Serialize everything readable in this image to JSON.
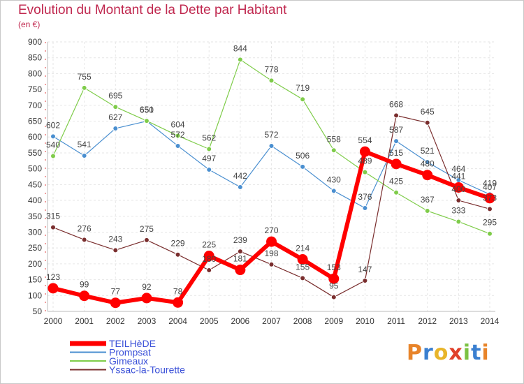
{
  "header": {
    "title": "Evolution du Montant de la Dette par Habitant",
    "subtitle": "(en €)"
  },
  "logo": {
    "text": "Proxiti",
    "colors": [
      "#e8842a",
      "#3a7fd0",
      "#e8b52a",
      "#e0402a",
      "#7cc243",
      "#3a7fd0",
      "#e8842a"
    ]
  },
  "chart_data": {
    "type": "line",
    "x": [
      "2000",
      "2001",
      "2002",
      "2003",
      "2004",
      "2005",
      "2006",
      "2007",
      "2008",
      "2009",
      "2010",
      "2011",
      "2012",
      "2013",
      "2014"
    ],
    "ylim": [
      50,
      900
    ],
    "yticks": [
      "50",
      "100",
      "150",
      "200",
      "250",
      "300",
      "350",
      "400",
      "450",
      "500",
      "550",
      "600",
      "650",
      "700",
      "750",
      "800",
      "850",
      "900"
    ],
    "grid": true,
    "legend_position": "bottom-left",
    "series": [
      {
        "name": "TEILHèDE",
        "color": "#ff0000",
        "width": 6,
        "values": [
          123,
          99,
          77,
          92,
          78,
          225,
          181,
          270,
          214,
          153,
          554,
          515,
          480,
          441,
          407
        ],
        "labels": [
          "123",
          "99",
          "77",
          "92",
          "78",
          "225",
          "181",
          "270",
          "214",
          "153",
          "554",
          "515",
          "480",
          "441",
          "407"
        ]
      },
      {
        "name": "Prompsat",
        "color": "#4a8fd0",
        "width": 1.2,
        "values": [
          602,
          541,
          627,
          650,
          572,
          497,
          442,
          572,
          506,
          430,
          376,
          587,
          521,
          464,
          419
        ],
        "labels": [
          "602",
          "541",
          "627",
          "650",
          "572",
          "497",
          "442",
          "572",
          "506",
          "430",
          "376",
          "587",
          "521",
          "464",
          "419"
        ]
      },
      {
        "name": "Gimeaux",
        "color": "#7fcc4a",
        "width": 1.2,
        "values": [
          540,
          755,
          695,
          651,
          604,
          562,
          844,
          778,
          719,
          558,
          489,
          425,
          367,
          333,
          295
        ],
        "labels": [
          "540",
          "755",
          "695",
          "651",
          "604",
          "562",
          "844",
          "778",
          "719",
          "558",
          "489",
          "425",
          "367",
          "333",
          "295"
        ]
      },
      {
        "name": "Yssac-la-Tourette",
        "color": "#7a2e2e",
        "width": 1.2,
        "values": [
          315,
          276,
          243,
          275,
          229,
          180,
          239,
          198,
          155,
          95,
          147,
          668,
          645,
          400,
          373
        ],
        "labels": [
          "315",
          "276",
          "243",
          "275",
          "229",
          "180",
          "239",
          "198",
          "155",
          "95",
          "147",
          "668",
          "645",
          "400",
          "373"
        ]
      }
    ]
  }
}
